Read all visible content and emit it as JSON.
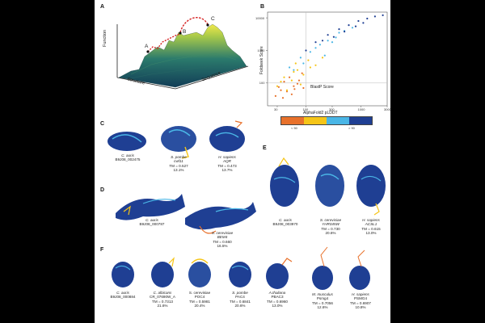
{
  "panels": {
    "a": {
      "label": "A",
      "axis_function": "Function",
      "axis_structure": "Structure",
      "axis_sequence": "Sequence",
      "points": [
        "A",
        "B",
        "C"
      ]
    },
    "b": {
      "label": "B",
      "colorbar_title": "AlphaFold2 pLDDT",
      "colorbar_low": "< 50",
      "colorbar_high": "> 90",
      "colors": [
        "#e8712b",
        "#f5c518",
        "#4ab6e6",
        "#1f3f93"
      ]
    },
    "c": {
      "label": "C",
      "structures": [
        {
          "species": "C. auris",
          "id": "B9J08_002475",
          "tm": "",
          "pct": ""
        },
        {
          "species": "S. pombe",
          "id": "cwf11",
          "tm": "TM = 0.527",
          "pct": "13.1%"
        },
        {
          "species": "H. sapiens",
          "id": "AQR",
          "tm": "TM = 0.473",
          "pct": "13.7%"
        }
      ]
    },
    "d": {
      "label": "D",
      "structures": [
        {
          "species": "C. auris",
          "id": "B9J08_000787",
          "tm": "",
          "pct": ""
        },
        {
          "species": "S. cerevisiae",
          "id": "BEM4",
          "tm": "TM = 0.660",
          "pct": "16.5%"
        }
      ]
    },
    "e": {
      "label": "E",
      "structures": [
        {
          "species": "C. auris",
          "id": "B9J08_003970",
          "tm": "",
          "pct": ""
        },
        {
          "species": "S. cerevisiae",
          "id": "YHR045W",
          "tm": "TM = 0.730",
          "pct": "20.6%"
        },
        {
          "species": "H. sapiens",
          "id": "ACSL1",
          "tm": "TM = 0.615",
          "pct": "13.0%"
        }
      ]
    },
    "f": {
      "label": "F",
      "structures": [
        {
          "species": "C. auris",
          "id": "B9J08_000884",
          "tm": "",
          "pct": ""
        },
        {
          "species": "C. albicans",
          "id": "CR_07690W_A",
          "tm": "TM = 0.7313",
          "pct": "21.6%"
        },
        {
          "species": "S. cerevisiae",
          "id": "POC4",
          "tm": "TM = 0.5981",
          "pct": "20.4%"
        },
        {
          "species": "S. pombe",
          "id": "PAC4",
          "tm": "TM = 0.6841",
          "pct": "20.6%"
        },
        {
          "species": "A.thaliana",
          "id": "PBAC3",
          "tm": "TM = 0.6960",
          "pct": "13.0%"
        },
        {
          "species": "M. musculus",
          "id": "Psmg4",
          "tm": "TM = 0.7056",
          "pct": "12.6%"
        },
        {
          "species": "H. sapiens",
          "id": "PSMG4",
          "tm": "TM = 0.6907",
          "pct": "10.8%"
        }
      ]
    }
  },
  "chart_data": {
    "type": "scatter",
    "title": "",
    "xlabel": "BlastP Score",
    "ylabel": "Foldseek Score",
    "xscale": "log",
    "yscale": "log",
    "xlim": [
      20,
      3000
    ],
    "ylim": [
      20,
      15000
    ],
    "xticks": [
      "30",
      "100",
      "300",
      "1000",
      "3000"
    ],
    "yticks": [
      "100",
      "1000",
      "10000"
    ],
    "reference_lines": {
      "x": 100,
      "y": 100
    },
    "series": [
      {
        "color": "#e8712b",
        "x": [
          28,
          35,
          45,
          60,
          75,
          90,
          40,
          55,
          32,
          50,
          70,
          85,
          38,
          62
        ],
        "y": [
          40,
          60,
          55,
          80,
          120,
          70,
          110,
          45,
          75,
          150,
          95,
          200,
          35,
          65
        ]
      },
      {
        "color": "#f5c518",
        "x": [
          30,
          40,
          55,
          70,
          90,
          120,
          45,
          65,
          80,
          110,
          150,
          35,
          200,
          60
        ],
        "y": [
          80,
          150,
          120,
          250,
          180,
          300,
          60,
          400,
          90,
          500,
          350,
          110,
          600,
          220
        ]
      },
      {
        "color": "#4ab6e6",
        "x": [
          50,
          80,
          120,
          180,
          250,
          350,
          500,
          700,
          90,
          150,
          300,
          60,
          400,
          220
        ],
        "y": [
          300,
          600,
          900,
          1500,
          2000,
          2500,
          4000,
          5000,
          400,
          1200,
          1800,
          250,
          3500,
          700
        ]
      },
      {
        "color": "#1f3f93",
        "x": [
          100,
          150,
          250,
          400,
          600,
          900,
          1300,
          1800,
          2500,
          200,
          500,
          800,
          1100,
          320
        ],
        "y": [
          1000,
          1800,
          3000,
          4500,
          6000,
          8000,
          9500,
          11000,
          12000,
          2000,
          3800,
          5500,
          7000,
          2600
        ]
      }
    ]
  }
}
